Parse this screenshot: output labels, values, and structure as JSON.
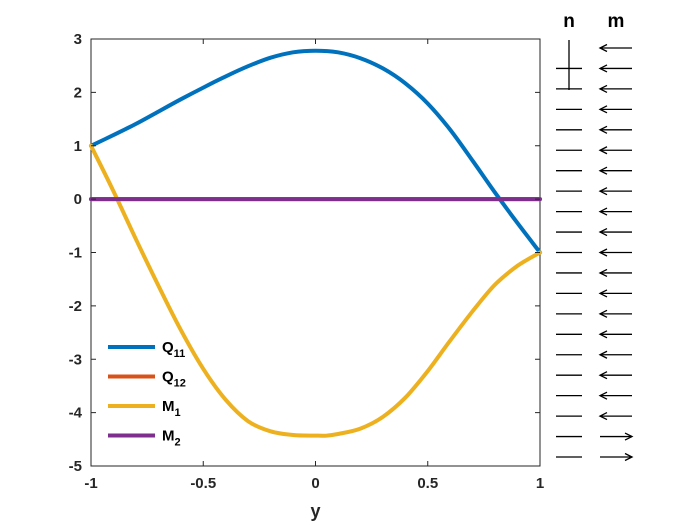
{
  "chart_data": {
    "type": "line",
    "title": "",
    "xlabel": "y",
    "ylabel": "",
    "xlim": [
      -1,
      1
    ],
    "ylim": [
      -5,
      3
    ],
    "grid": false,
    "legend_position": "bottom-left",
    "x_ticks": [
      "-1",
      "-0.5",
      "0",
      "0.5",
      "1"
    ],
    "y_ticks": [
      "3",
      "2",
      "1",
      "0",
      "-1",
      "-2",
      "-3",
      "-4",
      "-5"
    ],
    "series": [
      {
        "name": "Q11",
        "name_base": "Q",
        "name_sub": "11",
        "color": "#0072BD",
        "x": [
          -1,
          -0.9,
          -0.8,
          -0.7,
          -0.6,
          -0.5,
          -0.4,
          -0.3,
          -0.2,
          -0.1,
          0,
          0.1,
          0.2,
          0.3,
          0.4,
          0.5,
          0.6,
          0.7,
          0.8,
          0.9,
          1
        ],
        "y": [
          1,
          1.2,
          1.41,
          1.64,
          1.87,
          2.09,
          2.3,
          2.49,
          2.65,
          2.75,
          2.78,
          2.75,
          2.64,
          2.45,
          2.17,
          1.79,
          1.3,
          0.72,
          0.12,
          -0.45,
          -1
        ]
      },
      {
        "name": "Q12",
        "name_base": "Q",
        "name_sub": "12",
        "color": "#D95319",
        "x": [
          -1,
          1
        ],
        "y": [
          0,
          0
        ]
      },
      {
        "name": "M1",
        "name_base": "M",
        "name_sub": "1",
        "color": "#EDB120",
        "x": [
          -1,
          -0.9,
          -0.8,
          -0.7,
          -0.6,
          -0.5,
          -0.4,
          -0.3,
          -0.2,
          -0.1,
          0,
          0.05,
          0.1,
          0.2,
          0.3,
          0.4,
          0.5,
          0.6,
          0.7,
          0.8,
          0.9,
          1
        ],
        "y": [
          1,
          0.15,
          -0.75,
          -1.62,
          -2.45,
          -3.18,
          -3.76,
          -4.16,
          -4.35,
          -4.42,
          -4.43,
          -4.43,
          -4.4,
          -4.3,
          -4.08,
          -3.72,
          -3.22,
          -2.65,
          -2.1,
          -1.6,
          -1.25,
          -1
        ]
      },
      {
        "name": "M2",
        "name_base": "M",
        "name_sub": "2",
        "color": "#7E2F8E",
        "x": [
          -1,
          1
        ],
        "y": [
          0,
          0
        ]
      }
    ],
    "side_columns": {
      "n_label": "n",
      "m_label": "m",
      "n_symbols": [
        "vertical-bar",
        "dash",
        "dash",
        "dash",
        "dash",
        "dash",
        "dash",
        "dash",
        "dash",
        "dash",
        "dash",
        "dash",
        "dash",
        "dash",
        "dash",
        "dash",
        "dash",
        "dash",
        "dash",
        "dash",
        "dash"
      ],
      "m_symbols": [
        "left-arrow",
        "left-arrow",
        "left-arrow",
        "left-arrow",
        "left-arrow",
        "left-arrow",
        "left-arrow",
        "left-arrow",
        "left-arrow",
        "left-arrow",
        "left-arrow",
        "left-arrow",
        "left-arrow",
        "left-arrow",
        "left-arrow",
        "left-arrow",
        "left-arrow",
        "left-arrow",
        "left-arrow",
        "right-arrow",
        "right-arrow"
      ]
    }
  }
}
